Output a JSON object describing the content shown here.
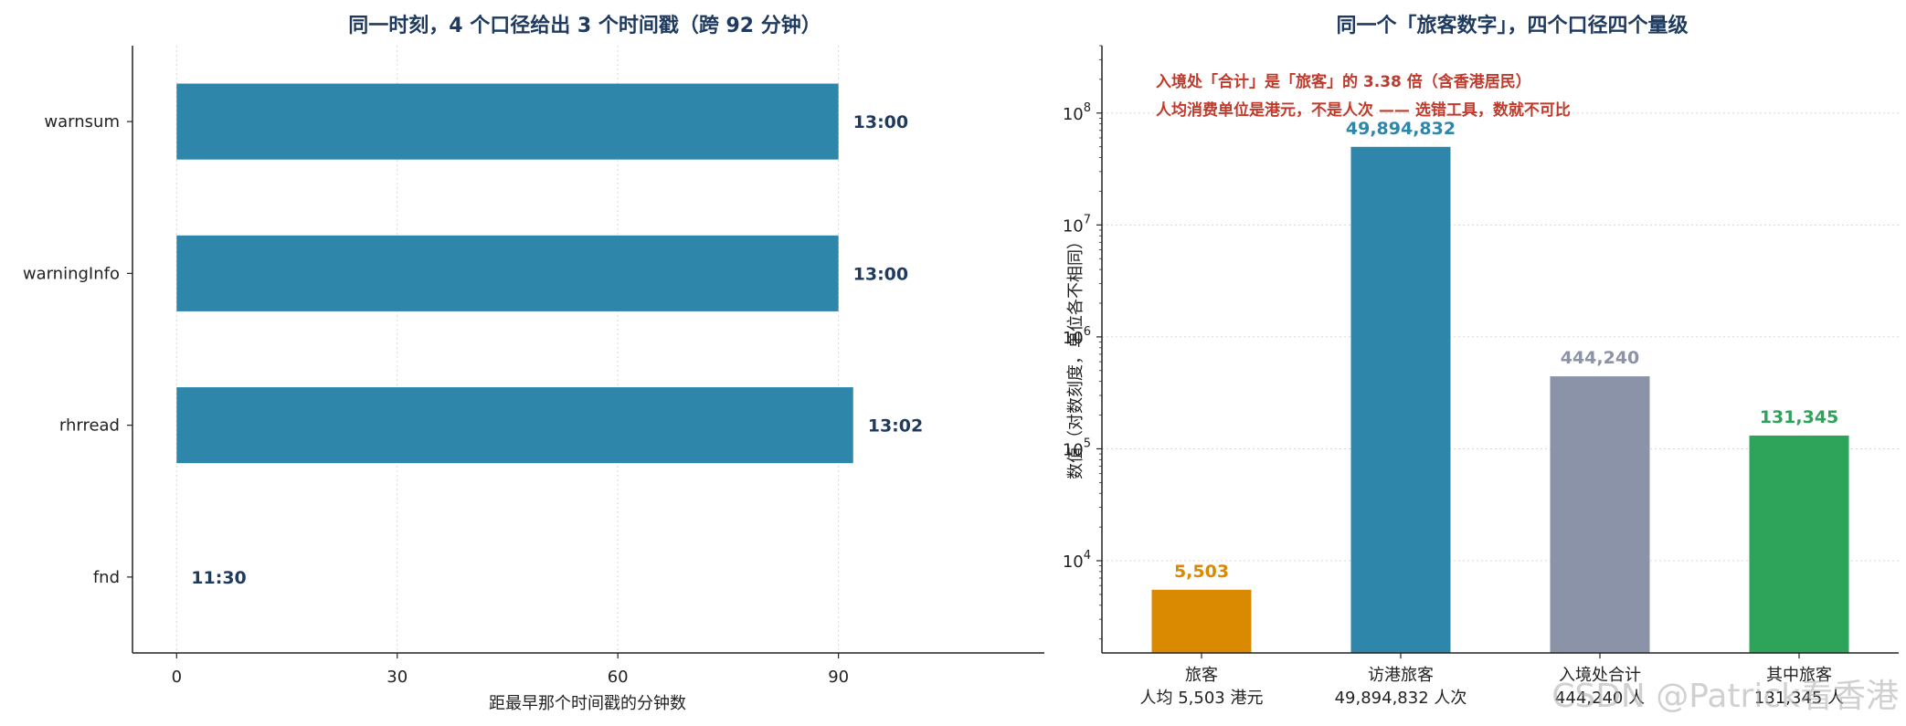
{
  "chart_data": [
    {
      "type": "bar",
      "orientation": "horizontal",
      "title": "同一时刻，4 个口径给出 3 个时间戳（跨 92 分钟）",
      "xlabel": "距最早那个时间戳的分钟数",
      "ylabel": "",
      "categories": [
        "warnsum",
        "warningInfo",
        "rhrread",
        "fnd"
      ],
      "values": [
        90,
        90,
        92,
        0
      ],
      "data_labels": [
        "13:00",
        "13:00",
        "13:02",
        "11:30"
      ],
      "xlim": [
        -6,
        118
      ],
      "xticks": [
        0,
        30,
        60,
        90
      ],
      "grid": true,
      "bar_color": "#2e86ab",
      "label_color": "#1f3a5f"
    },
    {
      "type": "bar",
      "title": "同一个「旅客数字」，四个口径四个量级",
      "ylabel": "数值（对数刻度，单位各不相同）",
      "yscale": "log",
      "ylim": [
        1500,
        400000000
      ],
      "yticks": [
        {
          "value": 10000,
          "base": "10",
          "exp": "4"
        },
        {
          "value": 100000,
          "base": "10",
          "exp": "5"
        },
        {
          "value": 1000000,
          "base": "10",
          "exp": "6"
        },
        {
          "value": 10000000,
          "base": "10",
          "exp": "7"
        },
        {
          "value": 100000000,
          "base": "10",
          "exp": "8"
        }
      ],
      "categories": [
        {
          "line1": "旅客",
          "line2": "人均 5,503 港元"
        },
        {
          "line1": "访港旅客",
          "line2": "49,894,832 人次"
        },
        {
          "line1": "入境处合计",
          "line2": "444,240 人"
        },
        {
          "line1": "其中旅客",
          "line2": "131,345 人"
        }
      ],
      "values": [
        5503,
        49894832,
        444240,
        131345
      ],
      "data_labels": [
        "5,503",
        "49,894,832",
        "444,240",
        "131,345"
      ],
      "colors": [
        "#d98a00",
        "#2e86ab",
        "#8a93a8",
        "#2ea35a"
      ],
      "annotations": [
        "入境处「合计」是「旅客」的 3.38 倍（含香港居民）",
        "人均消费单位是港元，不是人次 —— 选错工具，数就不可比"
      ],
      "annotation_color": "#c0392b",
      "grid": true
    }
  ],
  "watermark": "CSDN @Patrick看香港"
}
